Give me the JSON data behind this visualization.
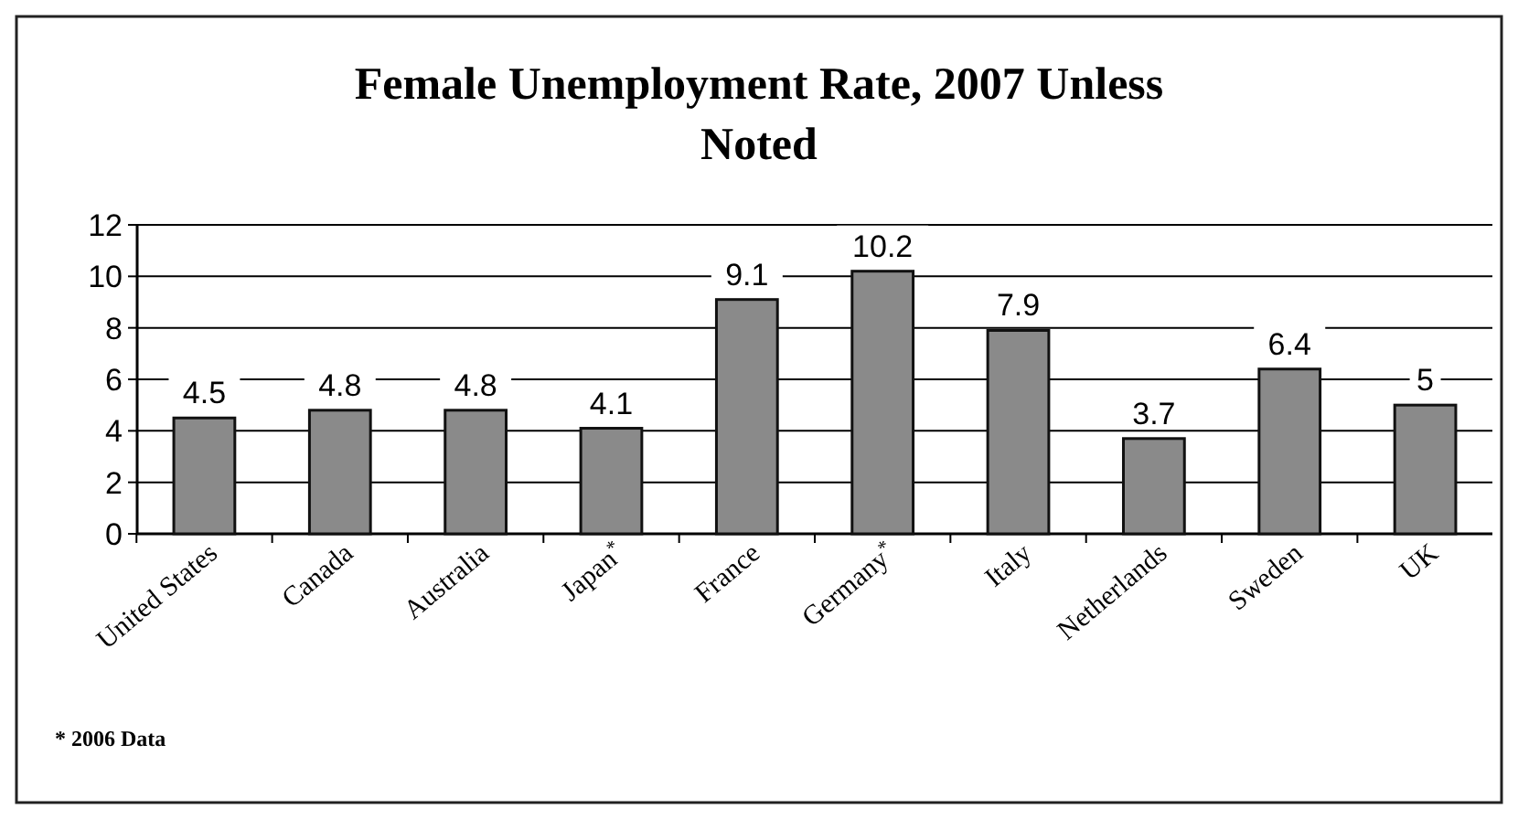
{
  "chart_data": {
    "type": "bar",
    "title": "Female Unemployment Rate, 2007 Unless Noted",
    "categories": [
      "United States",
      "Canada",
      "Australia",
      "Japan$^{*}$",
      "France",
      "Germany$^{*}$",
      "Italy",
      "Netherlands",
      "Sweden",
      "UK"
    ],
    "values": [
      4.5,
      4.8,
      4.8,
      4.1,
      9.1,
      10.2,
      7.9,
      3.7,
      6.4,
      5
    ],
    "color": "#8a8a8a",
    "ylim": [
      0,
      12
    ],
    "yticks": [
      0,
      2,
      4,
      6,
      8,
      10,
      12
    ],
    "grid": "y",
    "data_labels": true,
    "annotations": [
      "* 2006 Data"
    ]
  }
}
